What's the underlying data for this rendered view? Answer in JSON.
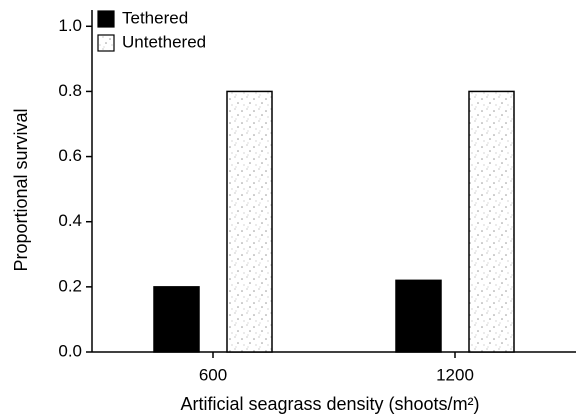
{
  "chart_data": {
    "type": "bar",
    "x_label": "Artificial seagrass density (shoots/m²)",
    "y_label": "Proportional survival",
    "categories": [
      "600",
      "1200"
    ],
    "series": [
      {
        "name": "Tethered",
        "color": "#000000",
        "values": [
          0.2,
          0.22
        ]
      },
      {
        "name": "Untethered",
        "color": "#ffffff",
        "values": [
          0.8,
          0.8
        ]
      }
    ],
    "ylim": [
      0,
      1.05
    ],
    "yticks": [
      {
        "value": 0,
        "label": "0.0"
      },
      0.2,
      0.4,
      0.6,
      0.8,
      {
        "value": 1,
        "label": "1.0"
      }
    ],
    "legend": "upper left"
  }
}
